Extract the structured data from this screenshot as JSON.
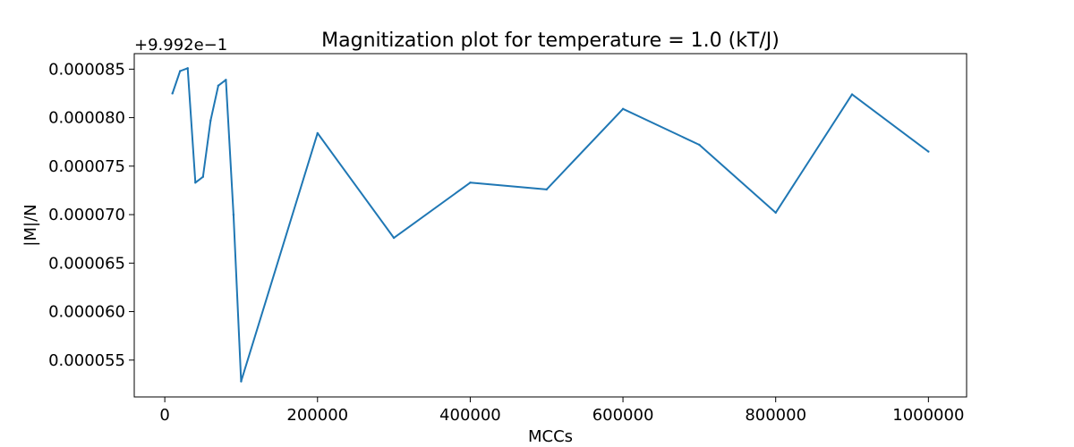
{
  "chart_data": {
    "type": "line",
    "title": "Magnitization plot for temperature =  1.0 (kT/J)",
    "xlabel": "MCCs",
    "ylabel": "|M|/N",
    "offset_text": "+9.992e−1",
    "xlim": [
      -40000,
      1050000
    ],
    "ylim": [
      5.12e-05,
      8.66e-05
    ],
    "x_ticks": [
      0,
      200000,
      400000,
      600000,
      800000,
      1000000
    ],
    "x_tick_labels": [
      "0",
      "200000",
      "400000",
      "600000",
      "800000",
      "1000000"
    ],
    "y_ticks": [
      5.5e-05,
      6e-05,
      6.5e-05,
      7e-05,
      7.5e-05,
      8e-05,
      8.5e-05
    ],
    "y_tick_labels": [
      "0.000055",
      "0.000060",
      "0.000065",
      "0.000070",
      "0.000075",
      "0.000080",
      "0.000085"
    ],
    "grid": false,
    "line_color": "#1f77b4",
    "series": [
      {
        "x": [
          10000,
          20000,
          30000,
          40000,
          50000,
          60000,
          70000,
          80000,
          90000,
          100000,
          200000,
          300000,
          400000,
          500000,
          600000,
          700000,
          800000,
          900000,
          1000000
        ],
        "values": [
          8.25e-05,
          8.48e-05,
          8.51e-05,
          7.33e-05,
          7.39e-05,
          7.97e-05,
          8.33e-05,
          8.39e-05,
          7e-05,
          5.28e-05,
          7.84e-05,
          6.76e-05,
          7.33e-05,
          7.26e-05,
          8.09e-05,
          7.72e-05,
          7.02e-05,
          8.24e-05,
          7.65e-05
        ]
      }
    ]
  }
}
